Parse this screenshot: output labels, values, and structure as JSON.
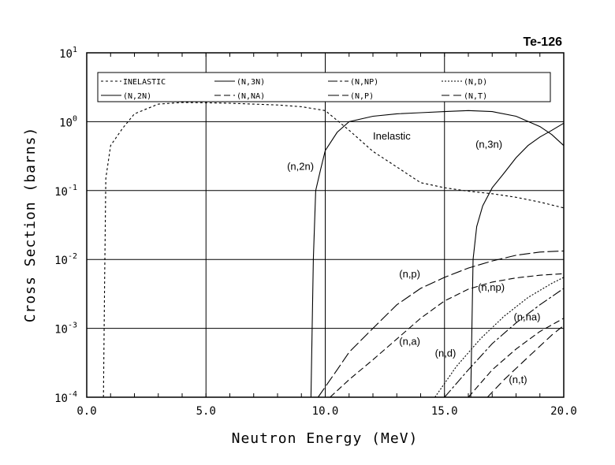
{
  "chart_data": {
    "type": "line",
    "title": "Te-126",
    "xlabel": "Neutron Energy (MeV)",
    "ylabel": "Cross Section (barns)",
    "xlim": [
      0,
      20
    ],
    "ylim": [
      0.0001,
      10
    ],
    "yscale": "log",
    "grid": true,
    "legend_position": "top",
    "x_ticks": [
      "0.0",
      "5.0",
      "10.0",
      "15.0",
      "20.0"
    ],
    "y_ticks": [
      {
        "base": "10",
        "exp": "-4"
      },
      {
        "base": "10",
        "exp": "-3"
      },
      {
        "base": "10",
        "exp": "-2"
      },
      {
        "base": "10",
        "exp": "-1"
      },
      {
        "base": "10",
        "exp": "0"
      },
      {
        "base": "10",
        "exp": "1"
      }
    ],
    "legend": [
      {
        "label": "INELASTIC",
        "dash": "3,3"
      },
      {
        "label": "(N,3N)",
        "dash": ""
      },
      {
        "label": "(N,NP)",
        "dash": "12,3,3,3"
      },
      {
        "label": "(N,D)",
        "dash": "2,2"
      },
      {
        "label": "(N,2N)",
        "dash": ""
      },
      {
        "label": "(N,NA)",
        "dash": "8,4"
      },
      {
        "label": "(N,P)",
        "dash": "14,4"
      },
      {
        "label": "(N,T)",
        "dash": "10,5"
      }
    ],
    "series": [
      {
        "name": "INELASTIC",
        "dash": "3,3",
        "points": [
          [
            0.7,
            0.0001
          ],
          [
            0.75,
            0.005
          ],
          [
            0.8,
            0.15
          ],
          [
            1.0,
            0.45
          ],
          [
            1.5,
            0.8
          ],
          [
            2.0,
            1.3
          ],
          [
            3.0,
            1.8
          ],
          [
            4.0,
            1.9
          ],
          [
            5.0,
            1.88
          ],
          [
            6.0,
            1.85
          ],
          [
            7.0,
            1.8
          ],
          [
            8.0,
            1.75
          ],
          [
            9.0,
            1.65
          ],
          [
            10.0,
            1.45
          ],
          [
            11.0,
            0.75
          ],
          [
            12.0,
            0.37
          ],
          [
            13.0,
            0.22
          ],
          [
            14.0,
            0.13
          ],
          [
            15.0,
            0.11
          ],
          [
            16.0,
            0.098
          ],
          [
            17.0,
            0.09
          ],
          [
            18.0,
            0.08
          ],
          [
            19.0,
            0.068
          ],
          [
            20.0,
            0.056
          ]
        ]
      },
      {
        "name": "(N,2N)",
        "dash": "",
        "points": [
          [
            9.4,
            0.0001
          ],
          [
            9.45,
            0.001
          ],
          [
            9.5,
            0.01
          ],
          [
            9.6,
            0.1
          ],
          [
            9.8,
            0.2
          ],
          [
            10.0,
            0.38
          ],
          [
            10.5,
            0.7
          ],
          [
            11.0,
            1.0
          ],
          [
            12.0,
            1.2
          ],
          [
            13.0,
            1.3
          ],
          [
            14.0,
            1.35
          ],
          [
            15.0,
            1.4
          ],
          [
            16.0,
            1.45
          ],
          [
            17.0,
            1.4
          ],
          [
            18.0,
            1.2
          ],
          [
            19.0,
            0.85
          ],
          [
            19.5,
            0.65
          ],
          [
            20.0,
            0.45
          ]
        ]
      },
      {
        "name": "(N,3N)",
        "dash": "",
        "points": [
          [
            16.1,
            0.0001
          ],
          [
            16.15,
            0.001
          ],
          [
            16.2,
            0.01
          ],
          [
            16.35,
            0.03
          ],
          [
            16.6,
            0.06
          ],
          [
            17.0,
            0.11
          ],
          [
            17.5,
            0.18
          ],
          [
            18.0,
            0.3
          ],
          [
            18.5,
            0.45
          ],
          [
            19.0,
            0.6
          ],
          [
            19.5,
            0.75
          ],
          [
            20.0,
            0.95
          ]
        ]
      },
      {
        "name": "(N,P)",
        "dash": "14,4",
        "points": [
          [
            9.7,
            0.0001
          ],
          [
            10.5,
            0.00025
          ],
          [
            11.0,
            0.00045
          ],
          [
            12.0,
            0.001
          ],
          [
            13.0,
            0.0022
          ],
          [
            14.0,
            0.0038
          ],
          [
            15.0,
            0.0055
          ],
          [
            16.0,
            0.0075
          ],
          [
            17.0,
            0.0095
          ],
          [
            18.0,
            0.0115
          ],
          [
            19.0,
            0.0128
          ],
          [
            20.0,
            0.0133
          ]
        ]
      },
      {
        "name": "(N,NA)",
        "dash": "8,4",
        "points": [
          [
            10.2,
            0.0001
          ],
          [
            11.0,
            0.00018
          ],
          [
            12.0,
            0.00035
          ],
          [
            13.0,
            0.0007
          ],
          [
            14.0,
            0.0014
          ],
          [
            15.0,
            0.0025
          ],
          [
            16.0,
            0.0037
          ],
          [
            17.0,
            0.0047
          ],
          [
            18.0,
            0.0054
          ],
          [
            19.0,
            0.0059
          ],
          [
            20.0,
            0.0062
          ]
        ]
      },
      {
        "name": "(N,NP)",
        "dash": "12,3,3,3",
        "points": [
          [
            15.0,
            0.0001
          ],
          [
            16.0,
            0.00025
          ],
          [
            17.0,
            0.0006
          ],
          [
            18.0,
            0.0012
          ],
          [
            19.0,
            0.0022
          ],
          [
            20.0,
            0.0038
          ]
        ]
      },
      {
        "name": "(N,D)",
        "dash": "2,2",
        "points": [
          [
            14.6,
            0.0001
          ],
          [
            15.5,
            0.00028
          ],
          [
            16.5,
            0.0007
          ],
          [
            17.5,
            0.0015
          ],
          [
            18.5,
            0.0028
          ],
          [
            19.5,
            0.0045
          ],
          [
            20.0,
            0.0055
          ]
        ]
      },
      {
        "name": "(N,NA)_2",
        "dash": "8,4",
        "points": [
          [
            16.0,
            0.0001
          ],
          [
            17.0,
            0.00025
          ],
          [
            18.0,
            0.0005
          ],
          [
            19.0,
            0.0009
          ],
          [
            20.0,
            0.0014
          ]
        ]
      },
      {
        "name": "(N,T)",
        "dash": "10,5",
        "points": [
          [
            16.8,
            0.0001
          ],
          [
            17.5,
            0.00018
          ],
          [
            18.5,
            0.00038
          ],
          [
            19.5,
            0.0008
          ],
          [
            20.0,
            0.0011
          ]
        ]
      }
    ],
    "annotations": [
      {
        "text": "Inelastic",
        "x": 12.0,
        "y": 0.55
      },
      {
        "text": "(n,2n)",
        "x": 8.4,
        "y": 0.2
      },
      {
        "text": "(n,3n)",
        "x": 16.3,
        "y": 0.42
      },
      {
        "text": "(n,p)",
        "x": 13.1,
        "y": 0.0055
      },
      {
        "text": "(n,np)",
        "x": 16.4,
        "y": 0.0035
      },
      {
        "text": "(n,na)",
        "x": 17.9,
        "y": 0.0013
      },
      {
        "text": "(n,a)",
        "x": 13.1,
        "y": 0.00058
      },
      {
        "text": "(n,d)",
        "x": 14.6,
        "y": 0.00039
      },
      {
        "text": "(n,t)",
        "x": 17.7,
        "y": 0.00016
      }
    ]
  }
}
